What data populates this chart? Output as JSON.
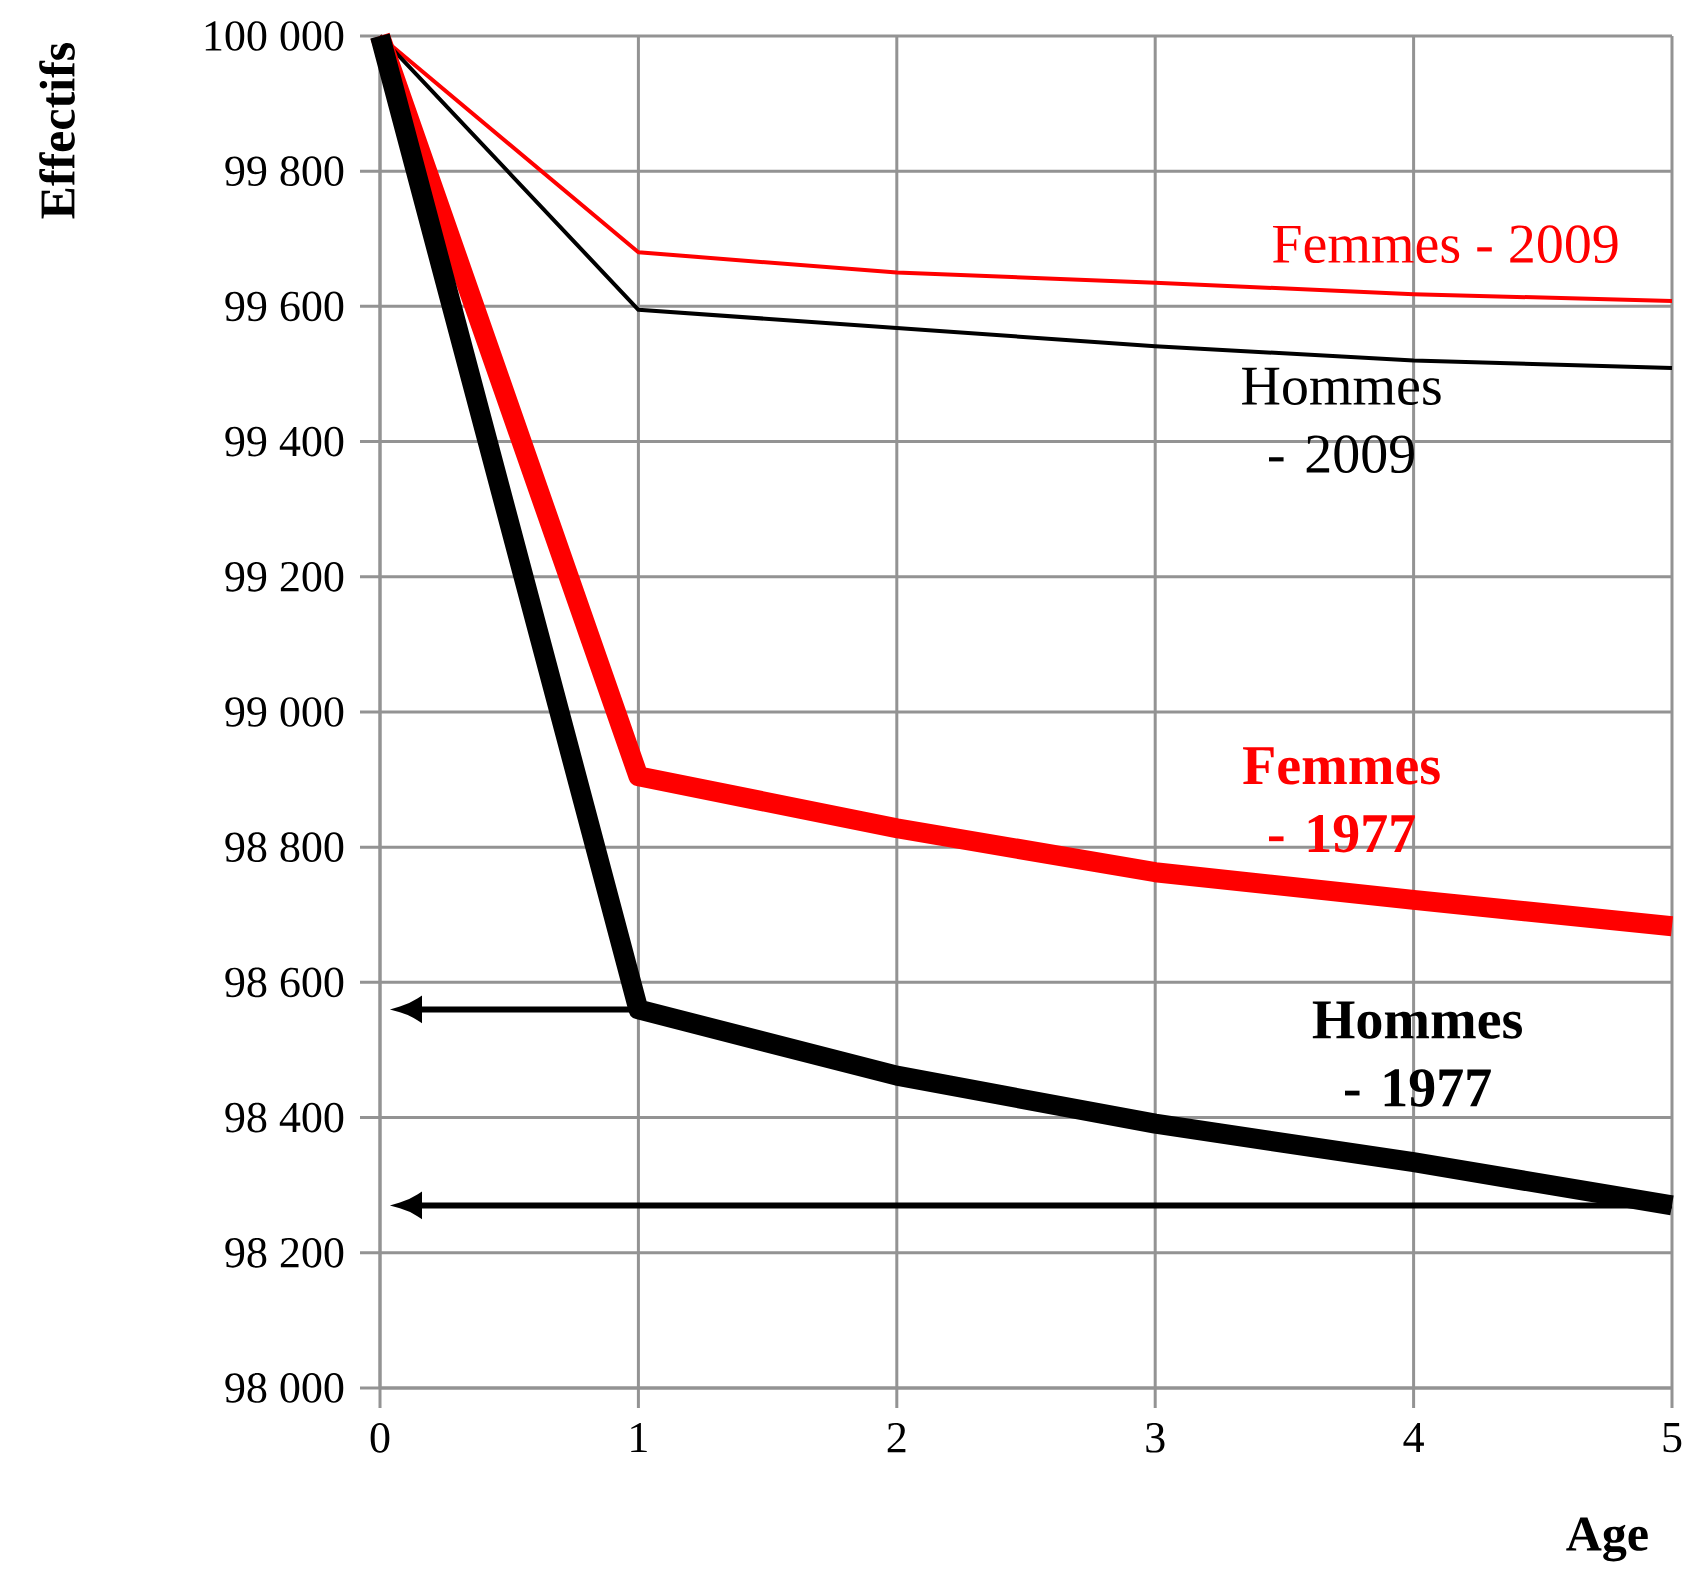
{
  "chart_data": {
    "type": "line",
    "xlabel": "Age",
    "ylabel": "Effectifs",
    "x": [
      0,
      1,
      2,
      3,
      4,
      5
    ],
    "series": [
      {
        "name": "Femmes - 2009",
        "color": "#ff0000",
        "values": [
          100000,
          99680,
          99650,
          99635,
          99618,
          99608
        ]
      },
      {
        "name": "Hommes - 2009",
        "color": "#000000",
        "values": [
          100000,
          99595,
          99568,
          99541,
          99520,
          99509
        ]
      },
      {
        "name": "Femmes - 1977",
        "color": "#ff0000",
        "values": [
          100000,
          98905,
          98828,
          98763,
          98722,
          98683
        ]
      },
      {
        "name": "Hommes - 1977",
        "color": "#000000",
        "values": [
          100000,
          98560,
          98462,
          98391,
          98334,
          98270
        ]
      }
    ],
    "xlim": [
      0,
      5
    ],
    "ylim": [
      98000,
      100000
    ],
    "xticks": [
      0,
      1,
      2,
      3,
      4,
      5
    ],
    "yticks": [
      {
        "value": 98000,
        "label": "98 000"
      },
      {
        "value": 98200,
        "label": "98 200"
      },
      {
        "value": 98400,
        "label": "98 400"
      },
      {
        "value": 98600,
        "label": "98 600"
      },
      {
        "value": 98800,
        "label": "98 800"
      },
      {
        "value": 99000,
        "label": "99 000"
      },
      {
        "value": 99200,
        "label": "99 200"
      },
      {
        "value": 99400,
        "label": "99 400"
      },
      {
        "value": 99600,
        "label": "99 600"
      },
      {
        "value": 99800,
        "label": "99 800"
      },
      {
        "value": 100000,
        "label": "100 000"
      }
    ],
    "ref_lines": [
      {
        "axis": "y",
        "value": 98560
      },
      {
        "axis": "y",
        "value": 98270
      }
    ],
    "grid": true,
    "marker": "none",
    "line_style": "solid"
  }
}
